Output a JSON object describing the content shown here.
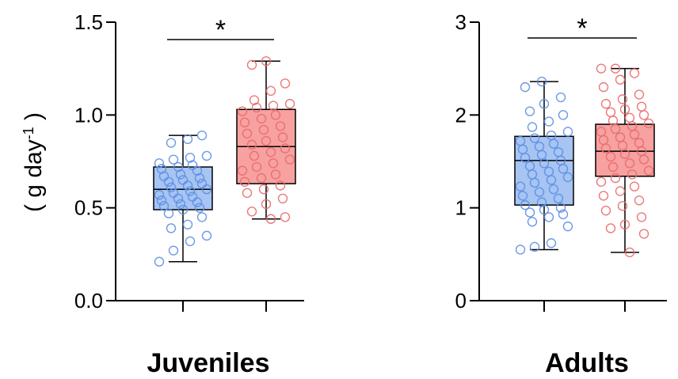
{
  "y_axis_title": {
    "prefix": "( g day",
    "superscript": "-1",
    "suffix": " )"
  },
  "colors": {
    "group1_fill": "#a7c4f2",
    "group1_point": "#5b8fe6",
    "group2_fill": "#f7a1a1",
    "group2_point": "#ea6a6a",
    "axis": "#000000"
  },
  "chart_data": [
    {
      "type": "box",
      "title": "",
      "xlabel": "Juveniles",
      "ylabel": "( g day-1 )",
      "ylim": [
        0.0,
        1.5
      ],
      "yticks": [
        "0.0",
        "0.5",
        "1.0",
        "1.5"
      ],
      "significance": "*",
      "legend": "none",
      "grid": false,
      "series": [
        {
          "color": "#5b8fe6",
          "whisker_low": 0.21,
          "q1": 0.49,
          "median": 0.6,
          "q3": 0.72,
          "whisker_high": 0.89,
          "points": [
            0.21,
            0.27,
            0.32,
            0.35,
            0.39,
            0.41,
            0.45,
            0.47,
            0.49,
            0.5,
            0.51,
            0.52,
            0.53,
            0.54,
            0.55,
            0.56,
            0.57,
            0.58,
            0.59,
            0.6,
            0.61,
            0.62,
            0.63,
            0.64,
            0.65,
            0.66,
            0.67,
            0.68,
            0.7,
            0.71,
            0.72,
            0.73,
            0.74,
            0.76,
            0.77,
            0.78,
            0.85,
            0.87,
            0.89
          ]
        },
        {
          "color": "#ea6a6a",
          "whisker_low": 0.44,
          "q1": 0.63,
          "median": 0.83,
          "q3": 1.03,
          "whisker_high": 1.29,
          "points": [
            0.44,
            0.45,
            0.48,
            0.52,
            0.55,
            0.58,
            0.6,
            0.62,
            0.64,
            0.66,
            0.68,
            0.7,
            0.72,
            0.74,
            0.76,
            0.78,
            0.8,
            0.82,
            0.84,
            0.86,
            0.88,
            0.9,
            0.92,
            0.94,
            0.96,
            0.98,
            1.0,
            1.02,
            1.04,
            1.05,
            1.06,
            1.08,
            1.13,
            1.17,
            1.27,
            1.29
          ]
        }
      ]
    },
    {
      "type": "box",
      "title": "",
      "xlabel": "Adults",
      "ylabel": "",
      "ylim": [
        0,
        3
      ],
      "yticks": [
        "0",
        "1",
        "2",
        "3"
      ],
      "significance": "*",
      "legend": "none",
      "grid": false,
      "series": [
        {
          "color": "#5b8fe6",
          "whisker_low": 0.55,
          "q1": 1.03,
          "median": 1.51,
          "q3": 1.77,
          "whisker_high": 2.36,
          "points": [
            0.55,
            0.58,
            0.62,
            0.8,
            0.85,
            0.9,
            0.93,
            0.95,
            0.98,
            1.0,
            1.03,
            1.06,
            1.1,
            1.13,
            1.17,
            1.2,
            1.23,
            1.27,
            1.3,
            1.33,
            1.36,
            1.39,
            1.42,
            1.45,
            1.48,
            1.51,
            1.54,
            1.57,
            1.6,
            1.63,
            1.66,
            1.69,
            1.72,
            1.75,
            1.78,
            1.82,
            1.87,
            1.93,
            2.0,
            2.04,
            2.12,
            2.19,
            2.3,
            2.36
          ]
        },
        {
          "color": "#ea6a6a",
          "whisker_low": 0.52,
          "q1": 1.34,
          "median": 1.61,
          "q3": 1.9,
          "whisker_high": 2.5,
          "points": [
            0.52,
            0.72,
            0.78,
            0.82,
            0.9,
            0.97,
            1.02,
            1.08,
            1.13,
            1.18,
            1.23,
            1.28,
            1.32,
            1.36,
            1.4,
            1.44,
            1.48,
            1.52,
            1.55,
            1.58,
            1.61,
            1.64,
            1.67,
            1.7,
            1.73,
            1.76,
            1.79,
            1.82,
            1.85,
            1.88,
            1.91,
            1.94,
            1.97,
            2.0,
            2.03,
            2.06,
            2.09,
            2.12,
            2.17,
            2.22,
            2.3,
            2.38,
            2.45,
            2.5,
            2.5
          ]
        }
      ]
    }
  ]
}
